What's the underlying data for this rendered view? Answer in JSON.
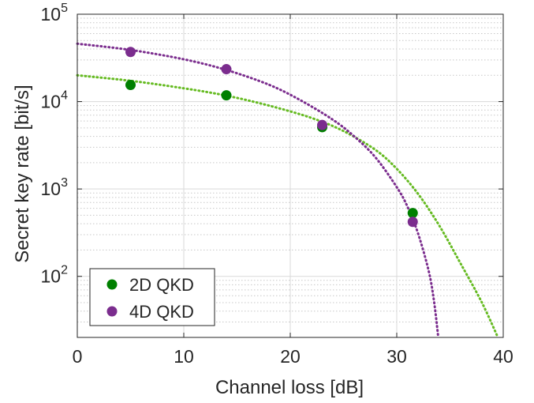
{
  "chart_data": {
    "type": "scatter",
    "xlabel": "Channel loss [dB]",
    "ylabel": "Secret key rate [bit/s]",
    "xlim": [
      0,
      40
    ],
    "ylim": [
      20,
      100000
    ],
    "yscale": "log",
    "grid": true,
    "minor_grid": true,
    "legend_position": "bottom-left",
    "x_ticks": [
      {
        "value": 0,
        "label": "0"
      },
      {
        "value": 10,
        "label": "10"
      },
      {
        "value": 20,
        "label": "20"
      },
      {
        "value": 30,
        "label": "30"
      },
      {
        "value": 40,
        "label": "40"
      }
    ],
    "y_ticks": [
      {
        "value": 100,
        "base": "10",
        "exp": "2"
      },
      {
        "value": 1000,
        "base": "10",
        "exp": "3"
      },
      {
        "value": 10000,
        "base": "10",
        "exp": "4"
      },
      {
        "value": 100000,
        "base": "10",
        "exp": "5"
      }
    ],
    "series": [
      {
        "name": "2D QKD",
        "color": "#008000",
        "fit_color": "#66bb22",
        "x": [
          5,
          14,
          23,
          31.5
        ],
        "y": [
          15500,
          11800,
          5100,
          530
        ],
        "fit": {
          "x": [
            0,
            5,
            10,
            14,
            18,
            22,
            25,
            28,
            30,
            32,
            34,
            36,
            38,
            39.5
          ],
          "y": [
            20000,
            17300,
            14200,
            11700,
            9000,
            6500,
            4600,
            2800,
            1700,
            880,
            380,
            140,
            50,
            20
          ]
        }
      },
      {
        "name": "4D QKD",
        "color": "#7b2d8e",
        "fit_color": "#7b2d8e",
        "x": [
          5,
          14,
          23,
          31.5
        ],
        "y": [
          37000,
          23500,
          5400,
          420
        ],
        "fit": {
          "x": [
            0,
            5,
            10,
            14,
            18,
            21,
            24,
            26,
            28,
            30,
            31,
            32,
            33,
            33.5,
            33.9
          ],
          "y": [
            46000,
            39000,
            30500,
            23000,
            15600,
            10300,
            6200,
            4000,
            2300,
            1050,
            630,
            310,
            115,
            52,
            20
          ]
        }
      }
    ]
  }
}
